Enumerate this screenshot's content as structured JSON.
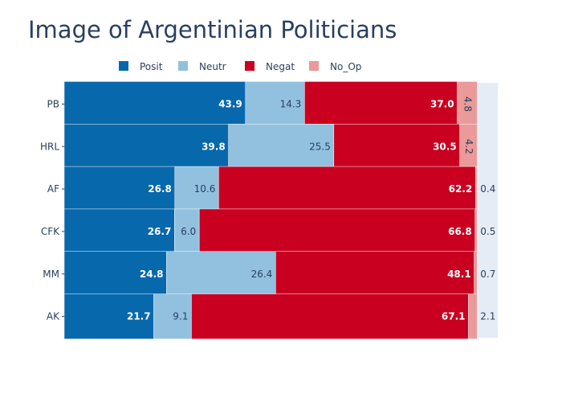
{
  "chart_data": {
    "type": "bar",
    "orientation": "horizontal",
    "barmode": "stack",
    "title": "Image of Argentinian Politicians",
    "categories": [
      "PB",
      "HRL",
      "AF",
      "CFK",
      "MM",
      "AK"
    ],
    "series": [
      {
        "name": "Posit",
        "color": "#0868ac",
        "values": [
          43.9,
          39.8,
          26.8,
          26.7,
          24.8,
          21.7
        ]
      },
      {
        "name": "Neutr",
        "color": "#92c1df",
        "values": [
          14.3,
          25.5,
          10.6,
          6.0,
          26.4,
          9.1
        ]
      },
      {
        "name": "Negat",
        "color": "#ca0020",
        "values": [
          37.0,
          30.5,
          62.2,
          66.8,
          48.1,
          67.1
        ]
      },
      {
        "name": "No_Op",
        "color": "#ea9a98",
        "values": [
          4.8,
          4.2,
          0.4,
          0.5,
          0.7,
          2.1
        ]
      }
    ],
    "xlim": [
      0,
      105
    ],
    "legend": "top, horizontal",
    "grid": false,
    "background": "#e5ecf6"
  }
}
